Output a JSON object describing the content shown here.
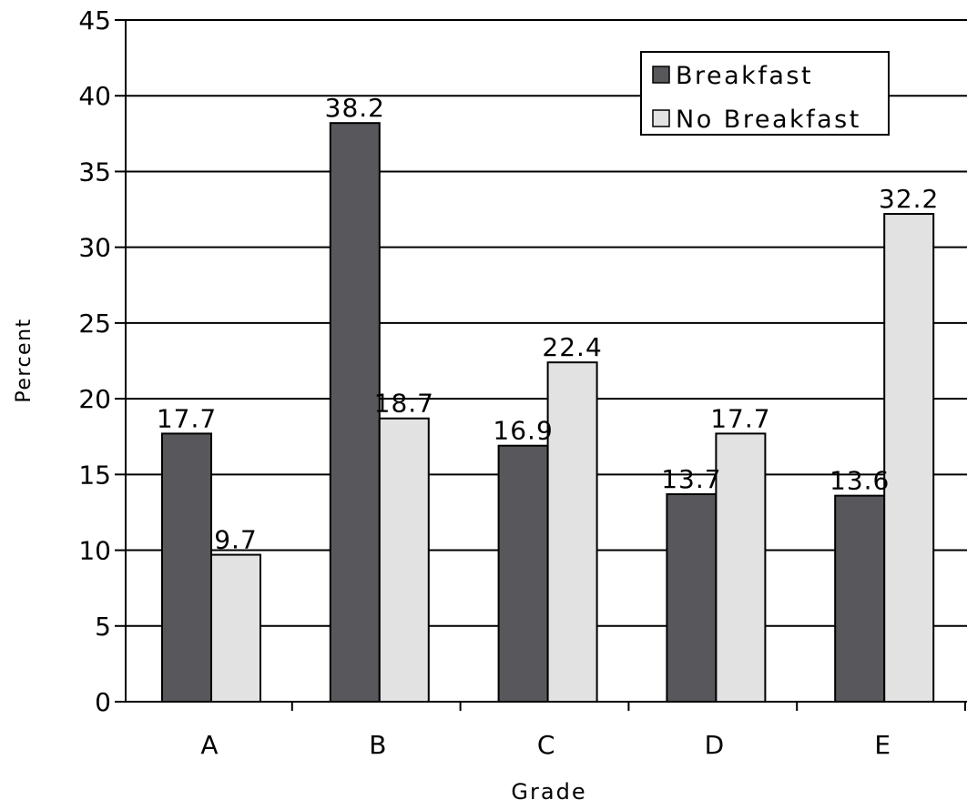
{
  "chart_data": {
    "type": "bar",
    "title": "",
    "xlabel": "Grade",
    "ylabel": "Percent",
    "categories": [
      "A",
      "B",
      "C",
      "D",
      "E"
    ],
    "y_ticks": [
      "0",
      "5",
      "10",
      "15",
      "20",
      "25",
      "30",
      "35",
      "40",
      "45"
    ],
    "ylim": [
      0,
      45
    ],
    "grid": true,
    "legend_position": "top-right",
    "series": [
      {
        "name": "Breakfast",
        "color": "#58575c",
        "values": [
          17.7,
          38.2,
          16.9,
          13.7,
          13.6
        ],
        "labels": [
          "17.7",
          "38.2",
          "16.9",
          "13.7",
          "13.6"
        ]
      },
      {
        "name": "No Breakfast",
        "color": "#e2e2e2",
        "values": [
          9.7,
          18.7,
          22.4,
          17.7,
          32.2
        ],
        "labels": [
          "9.7",
          "18.7",
          "22.4",
          "17.7",
          "32.2"
        ]
      }
    ]
  }
}
